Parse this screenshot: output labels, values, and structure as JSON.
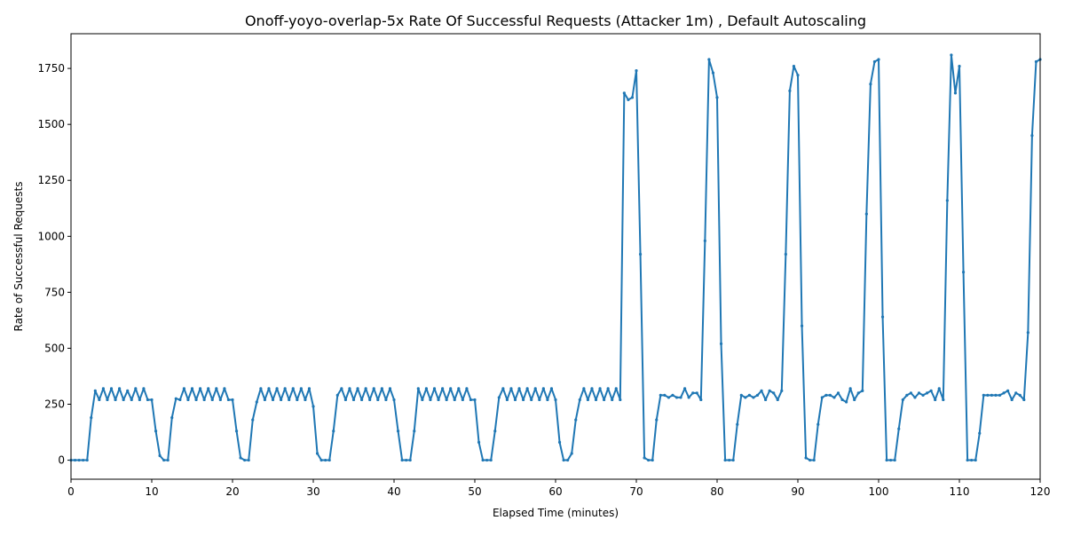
{
  "chart_data": {
    "type": "line",
    "title": "Onoff-yoyo-overlap-5x Rate Of Successful Requests (Attacker 1m) , Default Autoscaling",
    "x_label": "Elapsed Time (minutes)",
    "y_label": "Rate of Successful Requests",
    "x": [
      0,
      0.5,
      1,
      1.5,
      2,
      2.5,
      3,
      3.5,
      4,
      4.5,
      5,
      5.5,
      6,
      6.5,
      7,
      7.5,
      8,
      8.5,
      9,
      9.5,
      10,
      10.5,
      11,
      11.5,
      12,
      12.5,
      13,
      13.5,
      14,
      14.5,
      15,
      15.5,
      16,
      16.5,
      17,
      17.5,
      18,
      18.5,
      19,
      19.5,
      20,
      20.5,
      21,
      21.5,
      22,
      22.5,
      23,
      23.5,
      24,
      24.5,
      25,
      25.5,
      26,
      26.5,
      27,
      27.5,
      28,
      28.5,
      29,
      29.5,
      30,
      30.5,
      31,
      31.5,
      32,
      32.5,
      33,
      33.5,
      34,
      34.5,
      35,
      35.5,
      36,
      36.5,
      37,
      37.5,
      38,
      38.5,
      39,
      39.5,
      40,
      40.5,
      41,
      41.5,
      42,
      42.5,
      43,
      43.5,
      44,
      44.5,
      45,
      45.5,
      46,
      46.5,
      47,
      47.5,
      48,
      48.5,
      49,
      49.5,
      50,
      50.5,
      51,
      51.5,
      52,
      52.5,
      53,
      53.5,
      54,
      54.5,
      55,
      55.5,
      56,
      56.5,
      57,
      57.5,
      58,
      58.5,
      59,
      59.5,
      60,
      60.5,
      61,
      61.5,
      62,
      62.5,
      63,
      63.5,
      64,
      64.5,
      65,
      65.5,
      66,
      66.5,
      67,
      67.5,
      68,
      68.5,
      69,
      69.5,
      70,
      70.5,
      71,
      71.5,
      72,
      72.5,
      73,
      73.5,
      74,
      74.5,
      75,
      75.5,
      76,
      76.5,
      77,
      77.5,
      78,
      78.5,
      79,
      79.5,
      80,
      80.5,
      81,
      81.5,
      82,
      82.5,
      83,
      83.5,
      84,
      84.5,
      85,
      85.5,
      86,
      86.5,
      87,
      87.5,
      88,
      88.5,
      89,
      89.5,
      90,
      90.5,
      91,
      91.5,
      92,
      92.5,
      93,
      93.5,
      94,
      94.5,
      95,
      95.5,
      96,
      96.5,
      97,
      97.5,
      98,
      98.5,
      99,
      99.5,
      100,
      100.5,
      101,
      101.5,
      102,
      102.5,
      103,
      103.5,
      104,
      104.5,
      105,
      105.5,
      106,
      106.5,
      107,
      107.5,
      108,
      108.5,
      109,
      109.5,
      110,
      110.5,
      111,
      111.5,
      112,
      112.5,
      113,
      113.5,
      114,
      114.5,
      115,
      115.5,
      116,
      116.5,
      117,
      117.5,
      118,
      118.5,
      119,
      119.5,
      120
    ],
    "series": [
      {
        "color": "#1f77b4",
        "values": [
          0,
          0,
          0,
          0,
          0,
          190,
          310,
          270,
          320,
          270,
          320,
          270,
          320,
          270,
          310,
          270,
          320,
          270,
          320,
          270,
          270,
          130,
          20,
          0,
          0,
          190,
          275,
          270,
          320,
          270,
          320,
          270,
          320,
          270,
          320,
          270,
          320,
          270,
          320,
          270,
          270,
          130,
          10,
          0,
          0,
          180,
          260,
          320,
          270,
          320,
          270,
          320,
          270,
          320,
          270,
          320,
          270,
          320,
          270,
          320,
          240,
          30,
          0,
          0,
          0,
          130,
          290,
          320,
          270,
          320,
          270,
          320,
          270,
          320,
          270,
          320,
          270,
          320,
          270,
          320,
          270,
          130,
          0,
          0,
          0,
          130,
          320,
          270,
          320,
          270,
          320,
          270,
          320,
          270,
          320,
          270,
          320,
          270,
          320,
          270,
          270,
          80,
          0,
          0,
          0,
          130,
          280,
          320,
          270,
          320,
          270,
          320,
          270,
          320,
          270,
          320,
          270,
          320,
          270,
          320,
          270,
          80,
          0,
          0,
          30,
          180,
          270,
          320,
          270,
          320,
          270,
          320,
          270,
          320,
          270,
          320,
          270,
          1640,
          1610,
          1620,
          1740,
          920,
          10,
          0,
          0,
          180,
          290,
          290,
          280,
          290,
          280,
          280,
          320,
          280,
          300,
          300,
          270,
          980,
          1790,
          1730,
          1620,
          520,
          0,
          0,
          0,
          160,
          290,
          280,
          290,
          280,
          290,
          310,
          270,
          310,
          300,
          270,
          310,
          920,
          1650,
          1760,
          1720,
          600,
          10,
          0,
          0,
          160,
          280,
          290,
          290,
          280,
          300,
          270,
          260,
          320,
          270,
          300,
          310,
          1100,
          1680,
          1780,
          1790,
          640,
          0,
          0,
          0,
          140,
          270,
          290,
          300,
          280,
          300,
          290,
          300,
          310,
          270,
          320,
          270,
          1160,
          1810,
          1640,
          1760,
          840,
          0,
          0,
          0,
          120,
          290,
          290,
          290,
          290,
          290,
          300,
          310,
          270,
          300,
          290,
          270,
          570,
          1450,
          1780,
          1790
        ]
      }
    ],
    "xlim": [
      0,
      120
    ],
    "ylim": [
      -85,
      1905
    ],
    "xticks": [
      0,
      10,
      20,
      30,
      40,
      50,
      60,
      70,
      80,
      90,
      100,
      110,
      120
    ],
    "yticks": [
      0,
      250,
      500,
      750,
      1000,
      1250,
      1500,
      1750
    ]
  }
}
